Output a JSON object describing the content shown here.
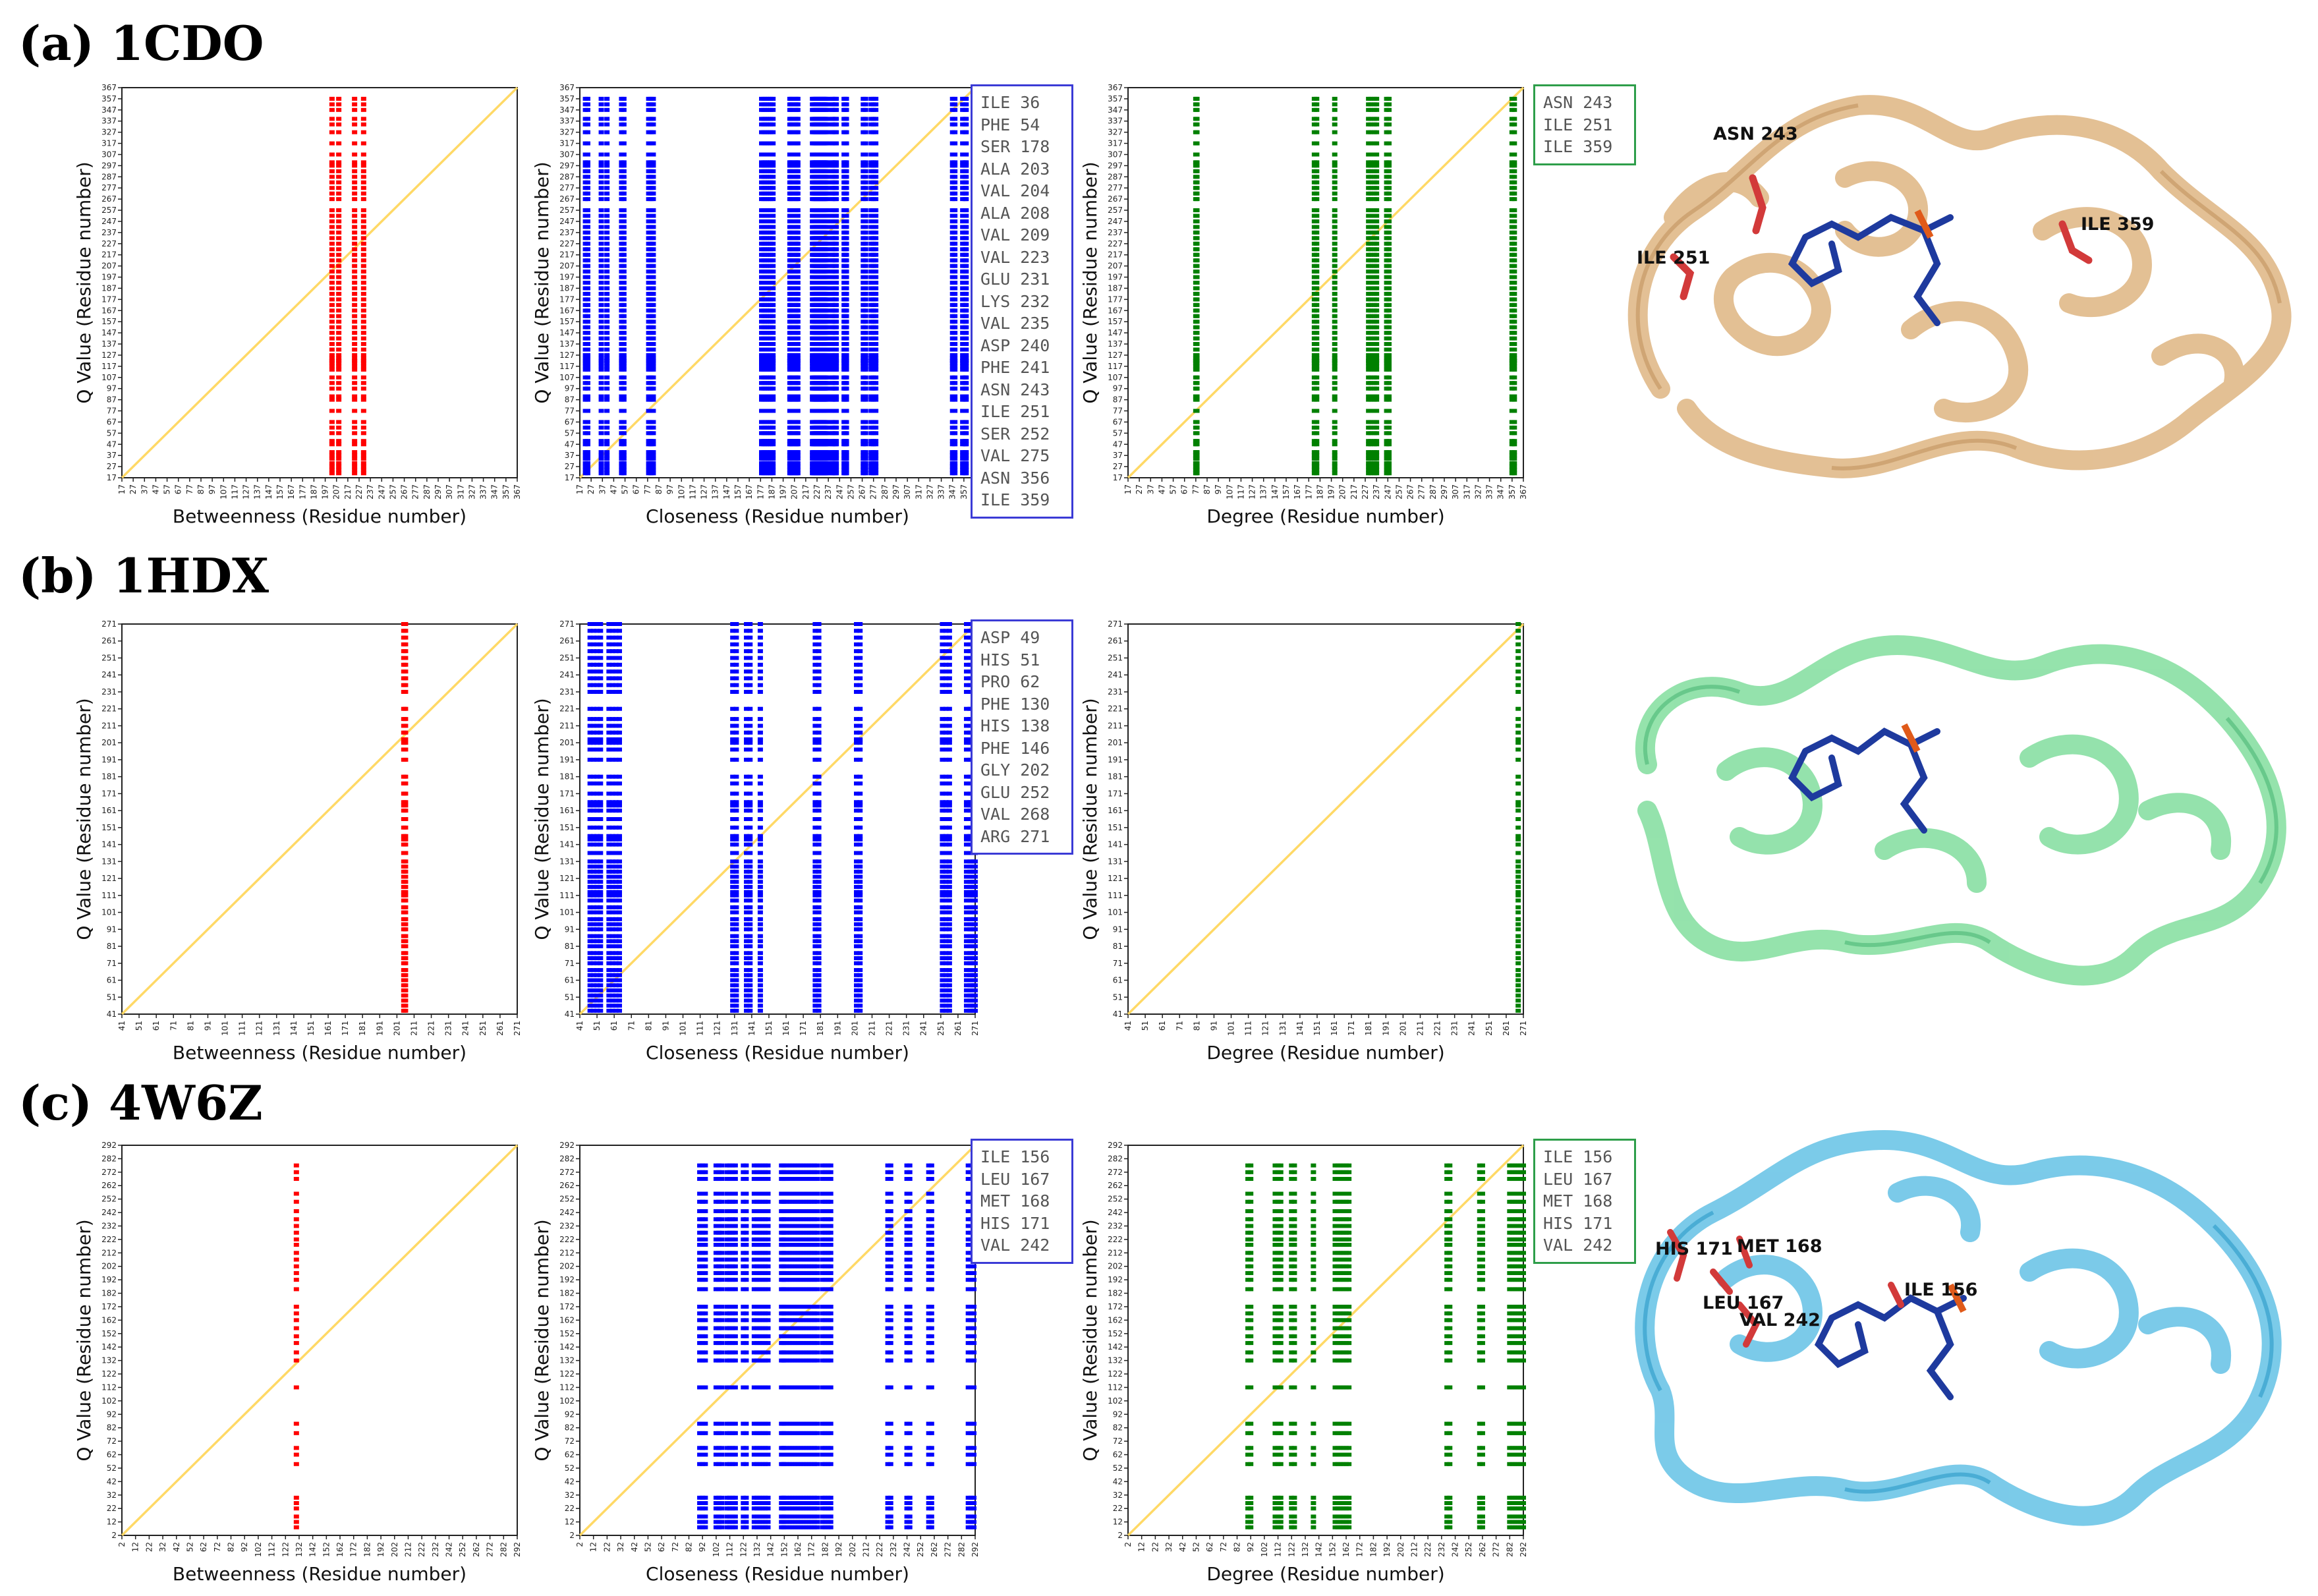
{
  "rows": [
    {
      "title": "(a) 1CDO",
      "axis_range": [
        17,
        367
      ],
      "tick_labels": [
        "17",
        "27",
        "37",
        "47",
        "57",
        "67",
        "77",
        "87",
        "97",
        "107",
        "117",
        "127",
        "137",
        "147",
        "157",
        "167",
        "177",
        "187",
        "197",
        "207",
        "217",
        "227",
        "237",
        "247",
        "257",
        "267",
        "277",
        "287",
        "297",
        "307",
        "317",
        "327",
        "337",
        "347",
        "357",
        "367"
      ],
      "legend_closeness": [
        "ILE 36",
        "PHE 54",
        "SER 178",
        "ALA 203",
        "VAL 204",
        "ALA 208",
        "VAL 209",
        "VAL 223",
        "GLU 231",
        "LYS 232",
        "VAL 235",
        "ASP 240",
        "PHE 241",
        "ASN 243",
        "ILE 251",
        "SER 252",
        "VAL 275",
        "ASN 356",
        "ILE 359"
      ],
      "legend_degree": [
        "ASN 243",
        "ILE 251",
        "ILE 359"
      ],
      "protein_labels": [
        "ASN 243",
        "ILE 251",
        "ILE 359"
      ]
    },
    {
      "title": "(b) 1HDX",
      "axis_range": [
        41,
        271
      ],
      "tick_labels": [
        "41",
        "51",
        "61",
        "71",
        "81",
        "91",
        "101",
        "111",
        "121",
        "131",
        "141",
        "151",
        "161",
        "171",
        "181",
        "191",
        "201",
        "211",
        "221",
        "231",
        "241",
        "251",
        "261",
        "271"
      ],
      "legend_closeness": [
        "ASP 49",
        "HIS 51",
        "PRO 62",
        "PHE 130",
        "HIS 138",
        "PHE 146",
        "GLY 202",
        "GLU 252",
        "VAL 268",
        "ARG 271"
      ],
      "legend_degree": [],
      "protein_labels": []
    },
    {
      "title": "(c) 4W6Z",
      "axis_range": [
        2,
        292
      ],
      "tick_labels": [
        "2",
        "12",
        "22",
        "32",
        "42",
        "52",
        "62",
        "72",
        "82",
        "92",
        "102",
        "112",
        "122",
        "132",
        "142",
        "152",
        "162",
        "172",
        "182",
        "192",
        "202",
        "212",
        "222",
        "232",
        "242",
        "252",
        "262",
        "272",
        "282",
        "292"
      ],
      "legend_closeness": [
        "ILE 156",
        "LEU 167",
        "MET 168",
        "HIS 171",
        "VAL 242"
      ],
      "legend_degree": [
        "ILE 156",
        "LEU 167",
        "MET 168",
        "HIS 171",
        "VAL 242"
      ],
      "protein_labels": [
        "HIS 171",
        "MET 168",
        "LEU 167",
        "ILE 156",
        "VAL 242"
      ]
    }
  ],
  "axis_text": {
    "ylabel": "Q Value (Residue number)",
    "xlabel_betweenness": "Betweenness (Residue number)",
    "xlabel_closeness": "Closeness (Residue number)",
    "xlabel_degree": "Degree (Residue number)"
  },
  "colors": {
    "betweenness": "#ff0000",
    "closeness": "#0000ff",
    "degree": "#008000",
    "diagonal": "#ffd966",
    "protein_1CDO": "#e9c9a0",
    "protein_1HDX": "#8ee0a6",
    "protein_4W6Z": "#6ec6e6",
    "ligand": "#1e3a9e"
  },
  "chart_data": [
    {
      "type": "scatter",
      "title": "(a) 1CDO",
      "xlabel": "Betweenness (Residue number)",
      "ylabel": "Q Value (Residue number)",
      "xlim": [
        17,
        367
      ],
      "ylim": [
        17,
        367
      ],
      "diagonal": true,
      "series": [
        {
          "columns_x": [
            203,
            209,
            223,
            231
          ]
        }
      ],
      "y_values": [
        357,
        352,
        347,
        339,
        334,
        327,
        317,
        307,
        300,
        297,
        292,
        287,
        282,
        277,
        272,
        267,
        257,
        252,
        247,
        242,
        237,
        232,
        227,
        222,
        217,
        212,
        207,
        202,
        197,
        192,
        187,
        182,
        177,
        172,
        167,
        162,
        157,
        152,
        147,
        142,
        137,
        132,
        127,
        124,
        122,
        120,
        117,
        114,
        107,
        102,
        97,
        90,
        87,
        77,
        67,
        62,
        57,
        50,
        47,
        40,
        37,
        34,
        30,
        27,
        24,
        21
      ]
    },
    {
      "type": "scatter",
      "title": "(a) 1CDO",
      "xlabel": "Closeness (Residue number)",
      "ylabel": "Q Value (Residue number)",
      "xlim": [
        17,
        367
      ],
      "ylim": [
        17,
        367
      ],
      "diagonal": true,
      "series": [
        {
          "columns_x": [
            22,
            24,
            36,
            41,
            54,
            56,
            78,
            80,
            82,
            178,
            180,
            182,
            184,
            186,
            188,
            203,
            204,
            205,
            208,
            209,
            210,
            223,
            224,
            225,
            226,
            227,
            228,
            229,
            230,
            231,
            232,
            233,
            234,
            235,
            236,
            240,
            241,
            243,
            244,
            251,
            252,
            253,
            268,
            270,
            275,
            277,
            279,
            347,
            349,
            356,
            358,
            359
          ]
        }
      ],
      "y_values": [
        357,
        352,
        347,
        339,
        334,
        327,
        317,
        307,
        300,
        297,
        292,
        287,
        282,
        277,
        272,
        267,
        257,
        252,
        247,
        242,
        237,
        232,
        227,
        222,
        217,
        212,
        207,
        202,
        197,
        192,
        187,
        182,
        177,
        172,
        167,
        162,
        157,
        152,
        147,
        142,
        137,
        132,
        127,
        124,
        122,
        120,
        117,
        114,
        107,
        102,
        97,
        90,
        87,
        77,
        67,
        62,
        57,
        50,
        47,
        40,
        37,
        34,
        30,
        27,
        24,
        21
      ]
    },
    {
      "type": "scatter",
      "title": "(a) 1CDO",
      "xlabel": "Degree (Residue number)",
      "ylabel": "Q Value (Residue number)",
      "xlim": [
        17,
        367
      ],
      "ylim": [
        17,
        367
      ],
      "diagonal": true,
      "series": [
        {
          "columns_x": [
            77,
            78,
            182,
            184,
            200,
            230,
            232,
            235,
            237,
            246,
            248,
            357,
            359
          ]
        }
      ],
      "y_values": [
        357,
        352,
        347,
        339,
        334,
        327,
        317,
        307,
        300,
        297,
        292,
        287,
        282,
        277,
        272,
        267,
        257,
        252,
        247,
        242,
        237,
        232,
        227,
        222,
        217,
        212,
        207,
        202,
        197,
        192,
        187,
        182,
        177,
        172,
        167,
        162,
        157,
        152,
        147,
        142,
        137,
        132,
        127,
        124,
        122,
        120,
        117,
        114,
        107,
        102,
        97,
        90,
        87,
        77,
        67,
        62,
        57,
        50,
        47,
        40,
        37,
        34,
        30,
        27,
        24,
        21
      ]
    },
    {
      "type": "scatter",
      "title": "(b) 1HDX",
      "xlabel": "Betweenness (Residue number)",
      "ylabel": "Q Value (Residue number)",
      "xlim": [
        41,
        271
      ],
      "ylim": [
        41,
        271
      ],
      "diagonal": true,
      "series": [
        {
          "columns_x": [
            205,
            206
          ]
        }
      ],
      "y_values": [
        271,
        267,
        263,
        259,
        255,
        251,
        247,
        243,
        239,
        235,
        231,
        221,
        215,
        211,
        207,
        203,
        201,
        197,
        191,
        181,
        177,
        171,
        166,
        164,
        161,
        156,
        151,
        146,
        144,
        141,
        136,
        131,
        128,
        125,
        122,
        119,
        116,
        113,
        111,
        108,
        104,
        101,
        97,
        94,
        91,
        87,
        84,
        81,
        77,
        74,
        71,
        67,
        64,
        61,
        58,
        55,
        52,
        49,
        46,
        43
      ]
    },
    {
      "type": "scatter",
      "title": "(b) 1HDX",
      "xlabel": "Closeness (Residue number)",
      "ylabel": "Q Value (Residue number)",
      "xlim": [
        41,
        271
      ],
      "ylim": [
        41,
        271
      ],
      "diagonal": true,
      "series": [
        {
          "columns_x": [
            47,
            49,
            51,
            53,
            58,
            60,
            62,
            64,
            130,
            132,
            138,
            140,
            146,
            178,
            180,
            202,
            204,
            252,
            254,
            256,
            266,
            268,
            269,
            270,
            271
          ]
        }
      ],
      "y_values": [
        271,
        267,
        263,
        259,
        255,
        251,
        247,
        243,
        239,
        235,
        231,
        221,
        215,
        211,
        207,
        203,
        201,
        197,
        191,
        181,
        177,
        171,
        166,
        164,
        161,
        156,
        151,
        146,
        144,
        141,
        136,
        131,
        128,
        125,
        122,
        119,
        116,
        113,
        111,
        108,
        104,
        101,
        97,
        94,
        91,
        87,
        84,
        81,
        77,
        74,
        71,
        67,
        64,
        61,
        58,
        55,
        52,
        49,
        46,
        43
      ]
    },
    {
      "type": "scatter",
      "title": "(b) 1HDX",
      "xlabel": "Degree (Residue number)",
      "ylabel": "Q Value (Residue number)",
      "xlim": [
        41,
        271
      ],
      "ylim": [
        41,
        271
      ],
      "diagonal": true,
      "series": [
        {
          "columns_x": [
            268
          ]
        }
      ],
      "y_values": [
        271,
        267,
        263,
        259,
        255,
        251,
        247,
        243,
        239,
        235,
        231,
        221,
        215,
        211,
        207,
        203,
        201,
        197,
        191,
        181,
        177,
        171,
        166,
        164,
        161,
        156,
        151,
        146,
        144,
        141,
        136,
        131,
        128,
        125,
        122,
        119,
        116,
        113,
        111,
        108,
        104,
        101,
        97,
        94,
        91,
        87,
        84,
        81,
        77,
        74,
        71,
        67,
        64,
        61,
        58,
        55,
        52,
        49,
        46,
        43
      ]
    },
    {
      "type": "scatter",
      "title": "(c) 4W6Z",
      "xlabel": "Betweenness (Residue number)",
      "ylabel": "Q Value (Residue number)",
      "xlim": [
        2,
        292
      ],
      "ylim": [
        2,
        292
      ],
      "diagonal": true,
      "series": [
        {
          "columns_x": [
            130
          ]
        }
      ],
      "y_values": [
        277,
        272,
        267,
        256,
        250,
        243,
        237,
        232,
        227,
        222,
        218,
        212,
        207,
        202,
        197,
        192,
        185,
        172,
        167,
        162,
        156,
        150,
        145,
        138,
        132,
        112,
        85,
        78,
        67,
        62,
        55,
        30,
        26,
        22,
        16,
        12,
        8
      ]
    },
    {
      "type": "scatter",
      "title": "(c) 4W6Z",
      "xlabel": "Closeness (Residue number)",
      "ylabel": "Q Value (Residue number)",
      "xlim": [
        2,
        292
      ],
      "ylim": [
        2,
        292
      ],
      "diagonal": true,
      "series": [
        {
          "columns_x": [
            90,
            92,
            94,
            102,
            104,
            106,
            110,
            112,
            114,
            116,
            122,
            124,
            130,
            132,
            134,
            136,
            138,
            140,
            150,
            151,
            152,
            154,
            156,
            158,
            160,
            162,
            164,
            166,
            168,
            170,
            172,
            174,
            176,
            180,
            182,
            184,
            186,
            228,
            230,
            242,
            244,
            258,
            260,
            287,
            289,
            291
          ]
        }
      ],
      "y_values": [
        277,
        272,
        267,
        256,
        250,
        243,
        237,
        232,
        227,
        222,
        218,
        212,
        207,
        202,
        197,
        192,
        185,
        172,
        167,
        162,
        156,
        150,
        145,
        138,
        132,
        112,
        85,
        78,
        67,
        62,
        55,
        30,
        26,
        22,
        16,
        12,
        8
      ]
    },
    {
      "type": "scatter",
      "title": "(c) 4W6Z",
      "xlabel": "Degree (Residue number)",
      "ylabel": "Q Value (Residue number)",
      "xlim": [
        2,
        292
      ],
      "ylim": [
        2,
        292
      ],
      "diagonal": true,
      "series": [
        {
          "columns_x": [
            90,
            92,
            110,
            112,
            114,
            122,
            124,
            138,
            154,
            156,
            158,
            160,
            162,
            164,
            236,
            238,
            260,
            262,
            282,
            284,
            286,
            288,
            290,
            292
          ]
        }
      ],
      "y_values": [
        277,
        272,
        267,
        256,
        250,
        243,
        237,
        232,
        227,
        222,
        218,
        212,
        207,
        202,
        197,
        192,
        185,
        172,
        167,
        162,
        156,
        150,
        145,
        138,
        132,
        112,
        85,
        78,
        67,
        62,
        55,
        30,
        26,
        22,
        16,
        12,
        8
      ]
    }
  ]
}
